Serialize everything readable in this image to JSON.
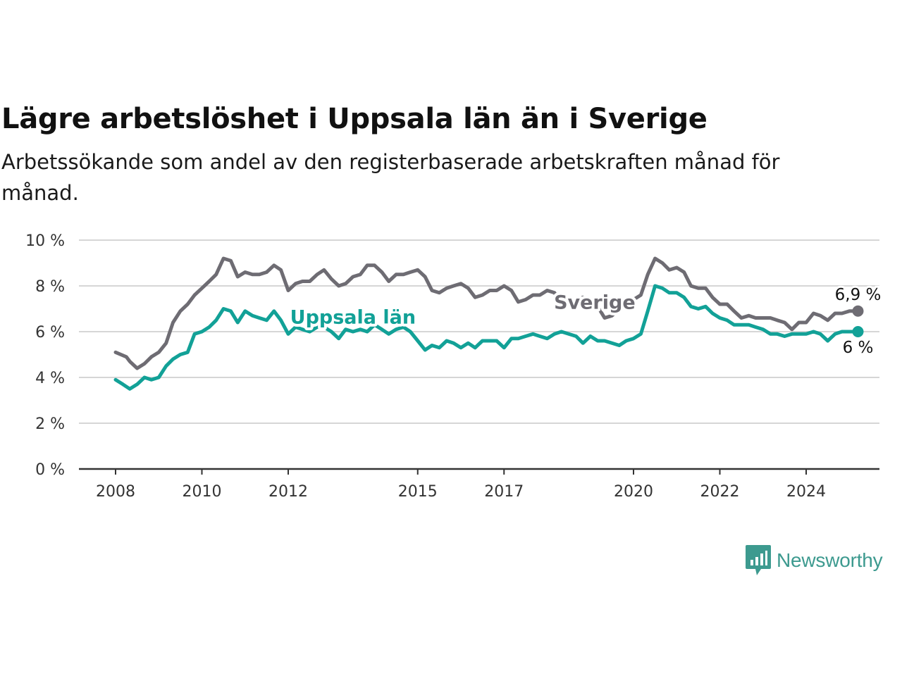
{
  "header": {
    "title": "Lägre arbetslöshet i Uppsala län än i Sverige",
    "subtitle": "Arbetssökande som andel av den registerbaserade arbetskraften månad för månad."
  },
  "branding": {
    "logo_text": "Newsworthy",
    "logo_icon": "bar-chart-speech-bubble-icon",
    "color": "#3d9a8f"
  },
  "chart_data": {
    "type": "line",
    "title": "Lägre arbetslöshet i Uppsala län än i Sverige",
    "subtitle": "Arbetssökande som andel av den registerbaserade arbetskraften månad för månad.",
    "xlabel": "",
    "ylabel": "",
    "ylim": [
      0,
      10
    ],
    "xlim": [
      2007.3,
      2025.8
    ],
    "y_ticks": [
      0,
      2,
      4,
      6,
      8,
      10
    ],
    "y_tick_labels": [
      "0 %",
      "2 %",
      "4 %",
      "6 %",
      "8 %",
      "10 %"
    ],
    "x_ticks": [
      2008,
      2010,
      2012,
      2015,
      2017,
      2020,
      2022,
      2024
    ],
    "x_tick_labels": [
      "2008",
      "2010",
      "2012",
      "2015",
      "2017",
      "2020",
      "2022",
      "2024"
    ],
    "grid": true,
    "legend": "inline labels",
    "series": [
      {
        "name": "Sverige",
        "color": "#6e6c73",
        "end_label": "6,9 %",
        "points": [
          [
            2008.0,
            5.1
          ],
          [
            2008.25,
            4.9
          ],
          [
            2008.33,
            4.7
          ],
          [
            2008.5,
            4.4
          ],
          [
            2008.67,
            4.6
          ],
          [
            2008.83,
            4.9
          ],
          [
            2009.0,
            5.1
          ],
          [
            2009.17,
            5.5
          ],
          [
            2009.33,
            6.4
          ],
          [
            2009.5,
            6.9
          ],
          [
            2009.67,
            7.2
          ],
          [
            2009.83,
            7.6
          ],
          [
            2010.0,
            7.9
          ],
          [
            2010.17,
            8.2
          ],
          [
            2010.33,
            8.5
          ],
          [
            2010.5,
            9.2
          ],
          [
            2010.67,
            9.1
          ],
          [
            2010.83,
            8.4
          ],
          [
            2011.0,
            8.6
          ],
          [
            2011.17,
            8.5
          ],
          [
            2011.33,
            8.5
          ],
          [
            2011.5,
            8.6
          ],
          [
            2011.67,
            8.9
          ],
          [
            2011.83,
            8.7
          ],
          [
            2012.0,
            7.8
          ],
          [
            2012.17,
            8.1
          ],
          [
            2012.33,
            8.2
          ],
          [
            2012.5,
            8.2
          ],
          [
            2012.67,
            8.5
          ],
          [
            2012.83,
            8.7
          ],
          [
            2013.0,
            8.3
          ],
          [
            2013.17,
            8.0
          ],
          [
            2013.33,
            8.1
          ],
          [
            2013.5,
            8.4
          ],
          [
            2013.67,
            8.5
          ],
          [
            2013.83,
            8.9
          ],
          [
            2014.0,
            8.9
          ],
          [
            2014.17,
            8.6
          ],
          [
            2014.33,
            8.2
          ],
          [
            2014.5,
            8.5
          ],
          [
            2014.67,
            8.5
          ],
          [
            2014.83,
            8.6
          ],
          [
            2015.0,
            8.7
          ],
          [
            2015.17,
            8.4
          ],
          [
            2015.33,
            7.8
          ],
          [
            2015.5,
            7.7
          ],
          [
            2015.67,
            7.9
          ],
          [
            2015.83,
            8.0
          ],
          [
            2016.0,
            8.1
          ],
          [
            2016.17,
            7.9
          ],
          [
            2016.33,
            7.5
          ],
          [
            2016.5,
            7.6
          ],
          [
            2016.67,
            7.8
          ],
          [
            2016.83,
            7.8
          ],
          [
            2017.0,
            8.0
          ],
          [
            2017.17,
            7.8
          ],
          [
            2017.33,
            7.3
          ],
          [
            2017.5,
            7.4
          ],
          [
            2017.67,
            7.6
          ],
          [
            2017.83,
            7.6
          ],
          [
            2018.0,
            7.8
          ],
          [
            2018.17,
            7.7
          ],
          [
            2018.33,
            7.2
          ],
          [
            2018.5,
            7.4
          ],
          [
            2018.67,
            7.4
          ],
          [
            2018.83,
            7.5
          ],
          [
            2019.0,
            7.3
          ],
          [
            2019.17,
            7.1
          ],
          [
            2019.33,
            6.6
          ],
          [
            2019.5,
            6.7
          ],
          [
            2019.67,
            7.0
          ],
          [
            2019.83,
            7.3
          ],
          [
            2020.0,
            7.4
          ],
          [
            2020.17,
            7.6
          ],
          [
            2020.33,
            8.5
          ],
          [
            2020.5,
            9.2
          ],
          [
            2020.67,
            9.0
          ],
          [
            2020.83,
            8.7
          ],
          [
            2021.0,
            8.8
          ],
          [
            2021.17,
            8.6
          ],
          [
            2021.33,
            8.0
          ],
          [
            2021.5,
            7.9
          ],
          [
            2021.67,
            7.9
          ],
          [
            2021.83,
            7.5
          ],
          [
            2022.0,
            7.2
          ],
          [
            2022.17,
            7.2
          ],
          [
            2022.33,
            6.9
          ],
          [
            2022.5,
            6.6
          ],
          [
            2022.67,
            6.7
          ],
          [
            2022.83,
            6.6
          ],
          [
            2023.0,
            6.6
          ],
          [
            2023.17,
            6.6
          ],
          [
            2023.33,
            6.5
          ],
          [
            2023.5,
            6.4
          ],
          [
            2023.67,
            6.1
          ],
          [
            2023.83,
            6.4
          ],
          [
            2024.0,
            6.4
          ],
          [
            2024.17,
            6.8
          ],
          [
            2024.33,
            6.7
          ],
          [
            2024.5,
            6.5
          ],
          [
            2024.67,
            6.8
          ],
          [
            2024.83,
            6.8
          ],
          [
            2025.0,
            6.9
          ],
          [
            2025.2,
            6.9
          ]
        ]
      },
      {
        "name": "Uppsala län",
        "color": "#12a197",
        "end_label": "6 %",
        "points": [
          [
            2008.0,
            3.9
          ],
          [
            2008.17,
            3.7
          ],
          [
            2008.33,
            3.5
          ],
          [
            2008.5,
            3.7
          ],
          [
            2008.67,
            4.0
          ],
          [
            2008.83,
            3.9
          ],
          [
            2009.0,
            4.0
          ],
          [
            2009.17,
            4.5
          ],
          [
            2009.33,
            4.8
          ],
          [
            2009.5,
            5.0
          ],
          [
            2009.67,
            5.1
          ],
          [
            2009.83,
            5.9
          ],
          [
            2010.0,
            6.0
          ],
          [
            2010.17,
            6.2
          ],
          [
            2010.33,
            6.5
          ],
          [
            2010.5,
            7.0
          ],
          [
            2010.67,
            6.9
          ],
          [
            2010.83,
            6.4
          ],
          [
            2011.0,
            6.9
          ],
          [
            2011.17,
            6.7
          ],
          [
            2011.33,
            6.6
          ],
          [
            2011.5,
            6.5
          ],
          [
            2011.67,
            6.9
          ],
          [
            2011.83,
            6.5
          ],
          [
            2012.0,
            5.9
          ],
          [
            2012.17,
            6.2
          ],
          [
            2012.33,
            6.1
          ],
          [
            2012.5,
            6.0
          ],
          [
            2012.67,
            6.2
          ],
          [
            2012.83,
            6.2
          ],
          [
            2013.0,
            6.0
          ],
          [
            2013.17,
            5.7
          ],
          [
            2013.33,
            6.1
          ],
          [
            2013.5,
            6.0
          ],
          [
            2013.67,
            6.1
          ],
          [
            2013.83,
            6.0
          ],
          [
            2014.0,
            6.3
          ],
          [
            2014.17,
            6.1
          ],
          [
            2014.33,
            5.9
          ],
          [
            2014.5,
            6.1
          ],
          [
            2014.67,
            6.2
          ],
          [
            2014.83,
            6.0
          ],
          [
            2015.0,
            5.6
          ],
          [
            2015.17,
            5.2
          ],
          [
            2015.33,
            5.4
          ],
          [
            2015.5,
            5.3
          ],
          [
            2015.67,
            5.6
          ],
          [
            2015.83,
            5.5
          ],
          [
            2016.0,
            5.3
          ],
          [
            2016.17,
            5.5
          ],
          [
            2016.33,
            5.3
          ],
          [
            2016.5,
            5.6
          ],
          [
            2016.67,
            5.6
          ],
          [
            2016.83,
            5.6
          ],
          [
            2017.0,
            5.3
          ],
          [
            2017.17,
            5.7
          ],
          [
            2017.33,
            5.7
          ],
          [
            2017.5,
            5.8
          ],
          [
            2017.67,
            5.9
          ],
          [
            2017.83,
            5.8
          ],
          [
            2018.0,
            5.7
          ],
          [
            2018.17,
            5.9
          ],
          [
            2018.33,
            6.0
          ],
          [
            2018.5,
            5.9
          ],
          [
            2018.67,
            5.8
          ],
          [
            2018.83,
            5.5
          ],
          [
            2019.0,
            5.8
          ],
          [
            2019.17,
            5.6
          ],
          [
            2019.33,
            5.6
          ],
          [
            2019.5,
            5.5
          ],
          [
            2019.67,
            5.4
          ],
          [
            2019.83,
            5.6
          ],
          [
            2020.0,
            5.7
          ],
          [
            2020.17,
            5.9
          ],
          [
            2020.33,
            6.9
          ],
          [
            2020.5,
            8.0
          ],
          [
            2020.67,
            7.9
          ],
          [
            2020.83,
            7.7
          ],
          [
            2021.0,
            7.7
          ],
          [
            2021.17,
            7.5
          ],
          [
            2021.33,
            7.1
          ],
          [
            2021.5,
            7.0
          ],
          [
            2021.67,
            7.1
          ],
          [
            2021.83,
            6.8
          ],
          [
            2022.0,
            6.6
          ],
          [
            2022.17,
            6.5
          ],
          [
            2022.33,
            6.3
          ],
          [
            2022.5,
            6.3
          ],
          [
            2022.67,
            6.3
          ],
          [
            2022.83,
            6.2
          ],
          [
            2023.0,
            6.1
          ],
          [
            2023.17,
            5.9
          ],
          [
            2023.33,
            5.9
          ],
          [
            2023.5,
            5.8
          ],
          [
            2023.67,
            5.9
          ],
          [
            2023.83,
            5.9
          ],
          [
            2024.0,
            5.9
          ],
          [
            2024.17,
            6.0
          ],
          [
            2024.33,
            5.9
          ],
          [
            2024.5,
            5.6
          ],
          [
            2024.67,
            5.9
          ],
          [
            2024.83,
            6.0
          ],
          [
            2025.0,
            6.0
          ],
          [
            2025.2,
            6.0
          ]
        ]
      }
    ],
    "annotations": [
      {
        "text": "Uppsala län",
        "series": "Uppsala län",
        "x": 2013.5,
        "y": 6.35
      },
      {
        "text": "Sverige",
        "series": "Sverige",
        "x": 2019.1,
        "y": 7.0
      }
    ]
  }
}
